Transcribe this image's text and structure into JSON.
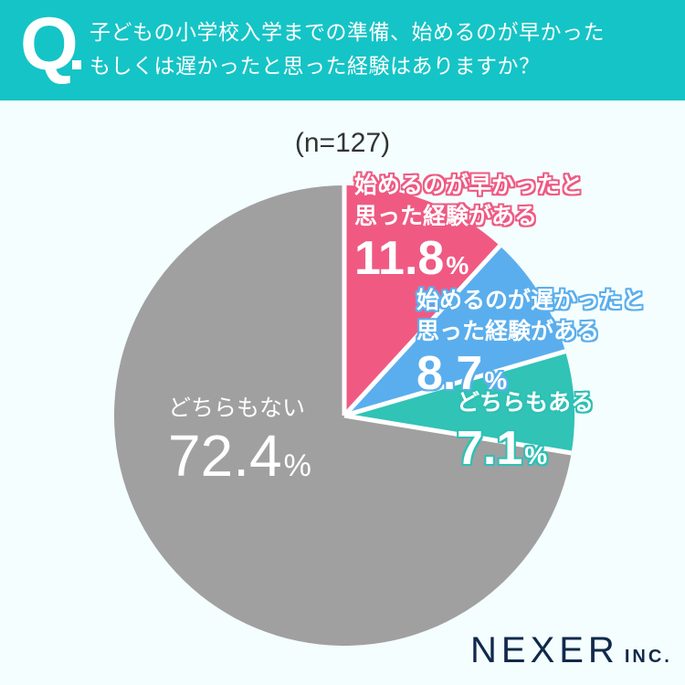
{
  "header": {
    "q_mark": "Q",
    "question_line1": "子どもの小学校入学までの準備、始めるのが早かった",
    "question_line2": "もしくは遅かったと思った経験はありますか？",
    "background_color": "#15c4c6"
  },
  "sample_label": "(n=127)",
  "labels": [
    {
      "category_line1": "始めるのが早かったと",
      "category_line2": "思った経験がある",
      "value": "11.8",
      "unit": "%",
      "color": "#f05a82"
    },
    {
      "category_line1": "始めるのが遅かったと",
      "category_line2": "思った経験がある",
      "value": "8.7",
      "unit": "%",
      "color": "#5aaeee"
    },
    {
      "category_line1": "どちらもある",
      "value": "7.1",
      "unit": "%",
      "color": "#30c3b6"
    },
    {
      "category_line1": "どちらもない",
      "value": "72.4",
      "unit": "%",
      "color": "#a0a0a0"
    }
  ],
  "logo": {
    "main": "NEXER",
    "sub": "INC."
  },
  "chart_data": {
    "type": "pie",
    "title": "子どもの小学校入学までの準備、始めるのが早かったもしくは遅かったと思った経験はありますか？",
    "subtitle": "(n=127)",
    "categories": [
      "始めるのが早かったと思った経験がある",
      "始めるのが遅かったと思った経験がある",
      "どちらもある",
      "どちらもない"
    ],
    "values": [
      11.8,
      8.7,
      7.1,
      72.4
    ],
    "unit": "%",
    "colors": [
      "#f05a82",
      "#5aaeee",
      "#30c3b6",
      "#a0a0a0"
    ],
    "start_angle": "12 o'clock",
    "direction": "clockwise",
    "legend": "none (direct labels)"
  }
}
